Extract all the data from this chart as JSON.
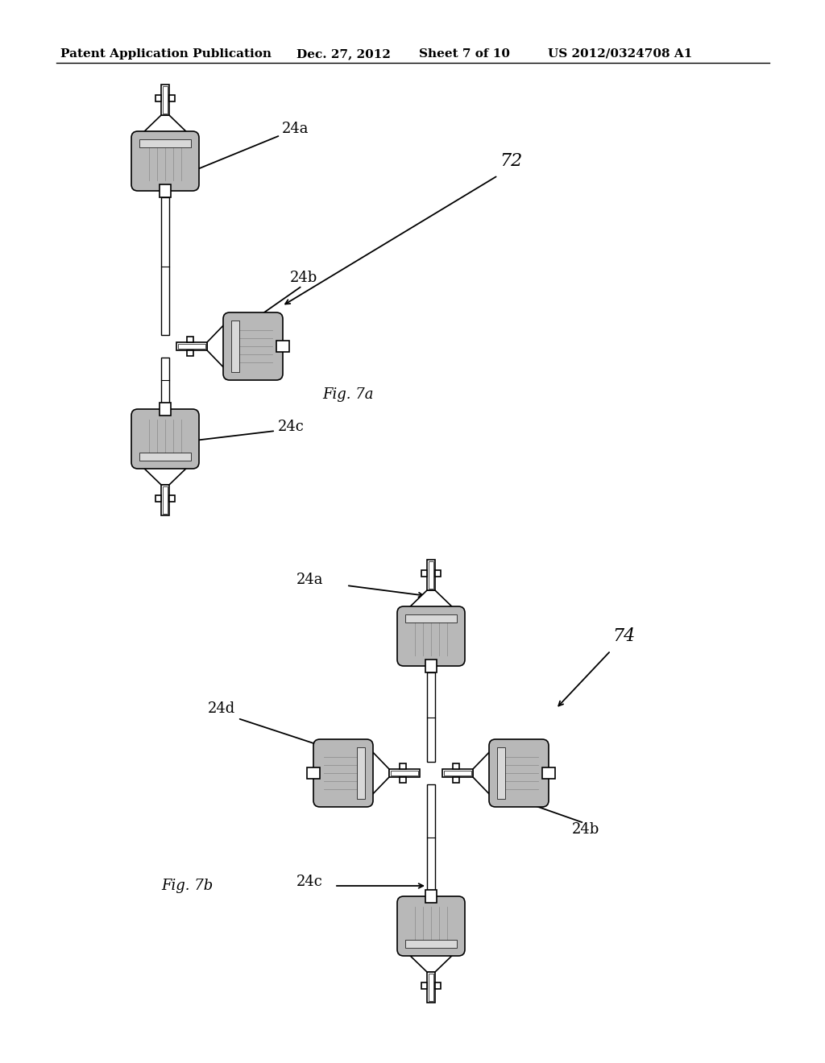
{
  "background_color": "#ffffff",
  "header_text": "Patent Application Publication",
  "header_date": "Dec. 27, 2012",
  "header_sheet": "Sheet 7 of 10",
  "header_patent": "US 2012/0324708 A1",
  "fig7a_label": "Fig. 7a",
  "fig7b_label": "Fig. 7b",
  "label_24a_7a": "24a",
  "label_24b_7a": "24b",
  "label_24c_7a": "24c",
  "label_72": "72",
  "label_24a_7b": "24a",
  "label_24b_7b": "24b",
  "label_24c_7b": "24c",
  "label_24d_7b": "24d",
  "label_74": "74",
  "gray_body": "#b8b8b8",
  "gray_dark": "#888888",
  "gray_light": "#d8d8d8"
}
